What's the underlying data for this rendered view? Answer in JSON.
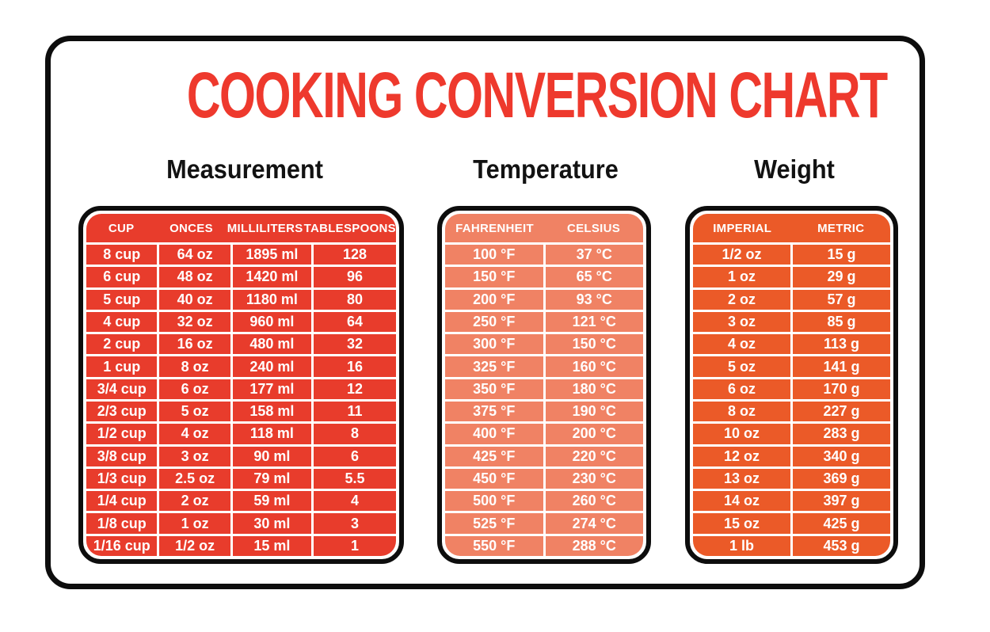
{
  "title": "COOKING CONVERSION CHART",
  "title_color": "#ee392d",
  "border_color": "#0d0d0d",
  "text_color": "#ffffff",
  "chart_data": [
    {
      "type": "table",
      "title": "Measurement",
      "accent_color": "#e83c2c",
      "columns": [
        "CUP",
        "ONCES",
        "MILLILITERS",
        "TABLESPOONS"
      ],
      "rows": [
        [
          "8 cup",
          "64 oz",
          "1895 ml",
          "128"
        ],
        [
          "6 cup",
          "48 oz",
          "1420 ml",
          "96"
        ],
        [
          "5 cup",
          "40 oz",
          "1180 ml",
          "80"
        ],
        [
          "4 cup",
          "32 oz",
          "960 ml",
          "64"
        ],
        [
          "2 cup",
          "16 oz",
          "480 ml",
          "32"
        ],
        [
          "1 cup",
          "8 oz",
          "240 ml",
          "16"
        ],
        [
          "3/4 cup",
          "6 oz",
          "177 ml",
          "12"
        ],
        [
          "2/3 cup",
          "5 oz",
          "158 ml",
          "11"
        ],
        [
          "1/2 cup",
          "4 oz",
          "118 ml",
          "8"
        ],
        [
          "3/8 cup",
          "3 oz",
          "90 ml",
          "6"
        ],
        [
          "1/3 cup",
          "2.5 oz",
          "79 ml",
          "5.5"
        ],
        [
          "1/4 cup",
          "2 oz",
          "59 ml",
          "4"
        ],
        [
          "1/8 cup",
          "1 oz",
          "30 ml",
          "3"
        ],
        [
          "1/16 cup",
          "1/2 oz",
          "15 ml",
          "1"
        ]
      ]
    },
    {
      "type": "table",
      "title": "Temperature",
      "accent_color": "#f08264",
      "columns": [
        "FAHRENHEIT",
        "CELSIUS"
      ],
      "rows": [
        [
          "100 °F",
          "37 °C"
        ],
        [
          "150 °F",
          "65 °C"
        ],
        [
          "200 °F",
          "93 °C"
        ],
        [
          "250 °F",
          "121 °C"
        ],
        [
          "300 °F",
          "150 °C"
        ],
        [
          "325 °F",
          "160 °C"
        ],
        [
          "350 °F",
          "180 °C"
        ],
        [
          "375 °F",
          "190 °C"
        ],
        [
          "400 °F",
          "200 °C"
        ],
        [
          "425 °F",
          "220 °C"
        ],
        [
          "450 °F",
          "230 °C"
        ],
        [
          "500 °F",
          "260 °C"
        ],
        [
          "525 °F",
          "274 °C"
        ],
        [
          "550 °F",
          "288 °C"
        ]
      ]
    },
    {
      "type": "table",
      "title": "Weight",
      "accent_color": "#eb5a28",
      "columns": [
        "IMPERIAL",
        "METRIC"
      ],
      "rows": [
        [
          "1/2 oz",
          "15 g"
        ],
        [
          "1 oz",
          "29 g"
        ],
        [
          "2 oz",
          "57 g"
        ],
        [
          "3 oz",
          "85 g"
        ],
        [
          "4 oz",
          "113 g"
        ],
        [
          "5 oz",
          "141 g"
        ],
        [
          "6 oz",
          "170 g"
        ],
        [
          "8 oz",
          "227 g"
        ],
        [
          "10 oz",
          "283 g"
        ],
        [
          "12 oz",
          "340 g"
        ],
        [
          "13 oz",
          "369 g"
        ],
        [
          "14 oz",
          "397 g"
        ],
        [
          "15 oz",
          "425 g"
        ],
        [
          "1 lb",
          "453 g"
        ]
      ]
    }
  ]
}
